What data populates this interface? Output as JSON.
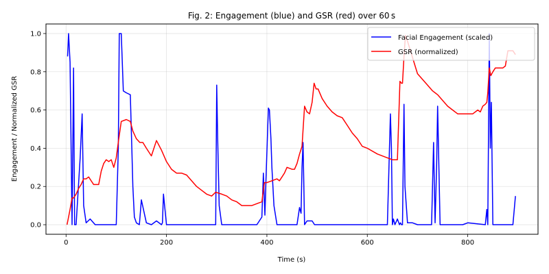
{
  "chart_data": {
    "type": "line",
    "title": "Fig. 2: Engagement (blue) and GSR (red) over 60 s",
    "xlabel": "Time (s)",
    "ylabel": "Engagement / Normalized GSR",
    "xlim": [
      -40,
      940
    ],
    "ylim": [
      -0.05,
      1.05
    ],
    "xticks": [
      0,
      200,
      400,
      600,
      800
    ],
    "yticks": [
      0.0,
      0.2,
      0.4,
      0.6,
      0.8,
      1.0
    ],
    "xtick_labels": [
      "0",
      "200",
      "400",
      "600",
      "800"
    ],
    "ytick_labels": [
      "0.0",
      "0.2",
      "0.4",
      "0.6",
      "0.8",
      "1.0"
    ],
    "grid": true,
    "legend_position": "top-right",
    "series": [
      {
        "name": "Facial Engagement (scaled)",
        "color": "#0000ff",
        "x": [
          3,
          5,
          8,
          12,
          15,
          17,
          20,
          28,
          32,
          35,
          40,
          48,
          58,
          70,
          85,
          100,
          104,
          106,
          110,
          114,
          120,
          128,
          131,
          133,
          136,
          140,
          146,
          150,
          160,
          170,
          180,
          190,
          192,
          194,
          200,
          220,
          250,
          280,
          298,
          300,
          302,
          305,
          310,
          320,
          340,
          360,
          380,
          390,
          393,
          396,
          398,
          403,
          405,
          408,
          410,
          414,
          420,
          440,
          460,
          465,
          468,
          470,
          472,
          475,
          480,
          490,
          495,
          520,
          550,
          600,
          640,
          646,
          648,
          650,
          652,
          655,
          660,
          664,
          666,
          668,
          670,
          673,
          675,
          680,
          690,
          700,
          728,
          732,
          735,
          738,
          740,
          745,
          790,
          800,
          835,
          838,
          840,
          843,
          845,
          847,
          850,
          860,
          870,
          880,
          890,
          895
        ],
        "y": [
          0.88,
          1.0,
          0.85,
          0.0,
          0.82,
          0.0,
          0.0,
          0.35,
          0.58,
          0.1,
          0.01,
          0.03,
          0.0,
          0.0,
          0.0,
          0.0,
          0.4,
          1.0,
          1.0,
          0.7,
          0.69,
          0.68,
          0.4,
          0.2,
          0.04,
          0.01,
          0.0,
          0.13,
          0.01,
          0.0,
          0.02,
          0.0,
          0.01,
          0.16,
          0.0,
          0.0,
          0.0,
          0.0,
          0.0,
          0.73,
          0.45,
          0.1,
          0.0,
          0.0,
          0.0,
          0.0,
          0.0,
          0.04,
          0.27,
          0.05,
          0.23,
          0.61,
          0.6,
          0.45,
          0.3,
          0.1,
          0.0,
          0.0,
          0.0,
          0.09,
          0.06,
          0.3,
          0.43,
          0.0,
          0.02,
          0.02,
          0.0,
          0.0,
          0.0,
          0.0,
          0.0,
          0.58,
          0.4,
          0.0,
          0.03,
          0.0,
          0.03,
          0.0,
          0.01,
          0.0,
          0.0,
          0.63,
          0.2,
          0.01,
          0.01,
          0.0,
          0.0,
          0.43,
          0.01,
          0.3,
          0.62,
          0.0,
          0.0,
          0.01,
          0.0,
          0.08,
          0.0,
          1.0,
          0.4,
          0.64,
          0.0,
          0.0,
          0.0,
          0.0,
          0.0,
          0.15
        ]
      },
      {
        "name": "GSR (normalized)",
        "color": "#ff0000",
        "x": [
          2,
          5,
          8,
          12,
          15,
          20,
          25,
          30,
          35,
          40,
          45,
          50,
          55,
          60,
          65,
          70,
          75,
          80,
          85,
          90,
          95,
          100,
          105,
          110,
          120,
          128,
          133,
          140,
          147,
          153,
          160,
          170,
          180,
          190,
          200,
          210,
          220,
          230,
          240,
          250,
          260,
          270,
          280,
          290,
          298,
          310,
          320,
          330,
          340,
          350,
          360,
          370,
          380,
          390,
          395,
          400,
          410,
          420,
          425,
          430,
          435,
          440,
          450,
          455,
          460,
          465,
          470,
          475,
          480,
          485,
          490,
          494,
          498,
          502,
          510,
          520,
          530,
          540,
          550,
          560,
          570,
          580,
          590,
          600,
          620,
          640,
          650,
          660,
          665,
          668,
          670,
          673,
          676,
          680,
          700,
          720,
          730,
          740,
          760,
          770,
          780,
          790,
          800,
          810,
          820,
          825,
          830,
          835,
          838,
          840,
          843,
          846,
          850,
          855,
          860,
          870,
          875,
          880,
          890,
          895
        ],
        "y": [
          0.0,
          0.04,
          0.08,
          0.14,
          0.14,
          0.16,
          0.19,
          0.21,
          0.24,
          0.24,
          0.25,
          0.23,
          0.21,
          0.21,
          0.21,
          0.28,
          0.32,
          0.34,
          0.33,
          0.34,
          0.3,
          0.35,
          0.45,
          0.54,
          0.55,
          0.54,
          0.49,
          0.45,
          0.43,
          0.43,
          0.4,
          0.36,
          0.44,
          0.39,
          0.33,
          0.29,
          0.27,
          0.27,
          0.26,
          0.23,
          0.2,
          0.18,
          0.16,
          0.15,
          0.17,
          0.16,
          0.15,
          0.13,
          0.12,
          0.1,
          0.1,
          0.1,
          0.11,
          0.12,
          0.22,
          0.22,
          0.23,
          0.24,
          0.23,
          0.25,
          0.27,
          0.3,
          0.29,
          0.29,
          0.32,
          0.37,
          0.41,
          0.62,
          0.59,
          0.58,
          0.64,
          0.74,
          0.71,
          0.71,
          0.66,
          0.62,
          0.59,
          0.57,
          0.56,
          0.52,
          0.48,
          0.45,
          0.41,
          0.4,
          0.37,
          0.35,
          0.34,
          0.34,
          0.75,
          0.74,
          0.74,
          0.88,
          0.99,
          0.96,
          0.79,
          0.73,
          0.7,
          0.68,
          0.62,
          0.6,
          0.58,
          0.58,
          0.58,
          0.58,
          0.6,
          0.59,
          0.62,
          0.63,
          0.64,
          0.69,
          0.82,
          0.78,
          0.8,
          0.82,
          0.82,
          0.82,
          0.83,
          0.91,
          0.91,
          0.89
        ]
      }
    ]
  }
}
